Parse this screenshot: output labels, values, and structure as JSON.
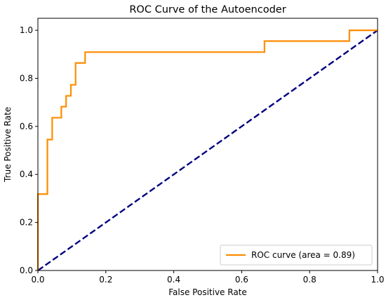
{
  "chart_data": {
    "type": "line",
    "title": "ROC Curve of the Autoencoder",
    "xlabel": "False Positive Rate",
    "ylabel": "True Positive Rate",
    "xlim": [
      0.0,
      1.0
    ],
    "ylim": [
      0.0,
      1.05
    ],
    "xticks": [
      "0.0",
      "0.2",
      "0.4",
      "0.6",
      "0.8",
      "1.0"
    ],
    "yticks": [
      "0.0",
      "0.2",
      "0.4",
      "0.6",
      "0.8",
      "1.0"
    ],
    "grid": false,
    "legend": {
      "position": "bottom-right"
    },
    "series": [
      {
        "name": "ROC curve (area = 0.89)",
        "color": "#ff8c00",
        "style": "solid",
        "x": [
          0.0,
          0.0,
          0.0,
          0.028,
          0.028,
          0.042,
          0.042,
          0.069,
          0.069,
          0.083,
          0.083,
          0.097,
          0.097,
          0.111,
          0.111,
          0.139,
          0.139,
          0.667,
          0.667,
          0.917,
          0.917,
          1.0
        ],
        "y": [
          0.0,
          0.045,
          0.318,
          0.318,
          0.545,
          0.545,
          0.636,
          0.636,
          0.682,
          0.682,
          0.727,
          0.727,
          0.773,
          0.773,
          0.864,
          0.864,
          0.909,
          0.909,
          0.955,
          0.955,
          1.0,
          1.0
        ]
      },
      {
        "name": "",
        "color": "#000080",
        "style": "dashed",
        "x": [
          0.0,
          1.0
        ],
        "y": [
          0.0,
          1.0
        ]
      }
    ]
  }
}
